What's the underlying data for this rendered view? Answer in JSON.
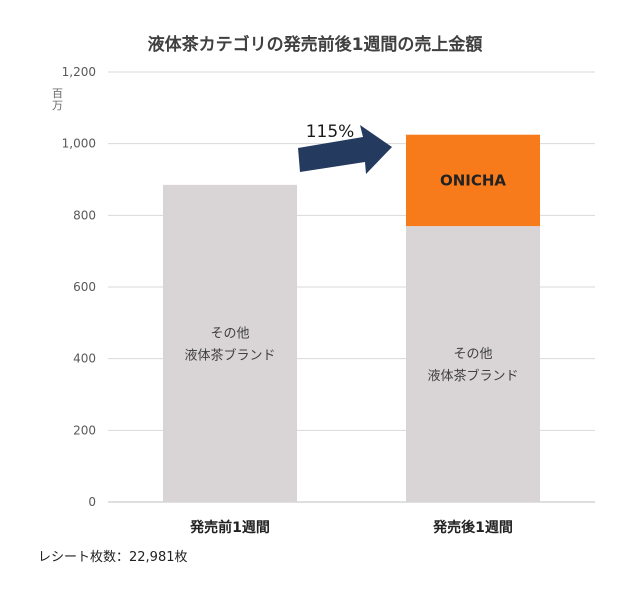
{
  "chart_data": {
    "type": "bar",
    "stacked": true,
    "title": "液体茶カテゴリの発売前後1週間の売上金額",
    "ylabel": "百万",
    "ylim": [
      0,
      1200
    ],
    "yticks": [
      0,
      200,
      400,
      600,
      800,
      1000,
      1200
    ],
    "ytick_labels": [
      "0",
      "200",
      "400",
      "600",
      "800",
      "1,000",
      "1,200"
    ],
    "grid": true,
    "categories": [
      "発売前1週間",
      "発売後1週間"
    ],
    "series": [
      {
        "name": "その他\n液体茶ブランド",
        "label_lines": [
          "その他",
          "液体茶ブランド"
        ],
        "color": "#d9d5d6",
        "values": [
          885,
          770
        ]
      },
      {
        "name": "ONICHA",
        "label_lines": [
          "ONICHA"
        ],
        "color": "#f77b1b",
        "values": [
          0,
          255
        ]
      }
    ],
    "annotation": {
      "text": "115%",
      "arrow_color": "#243a5e"
    }
  },
  "footnote": "レシート枚数：22,981枚"
}
